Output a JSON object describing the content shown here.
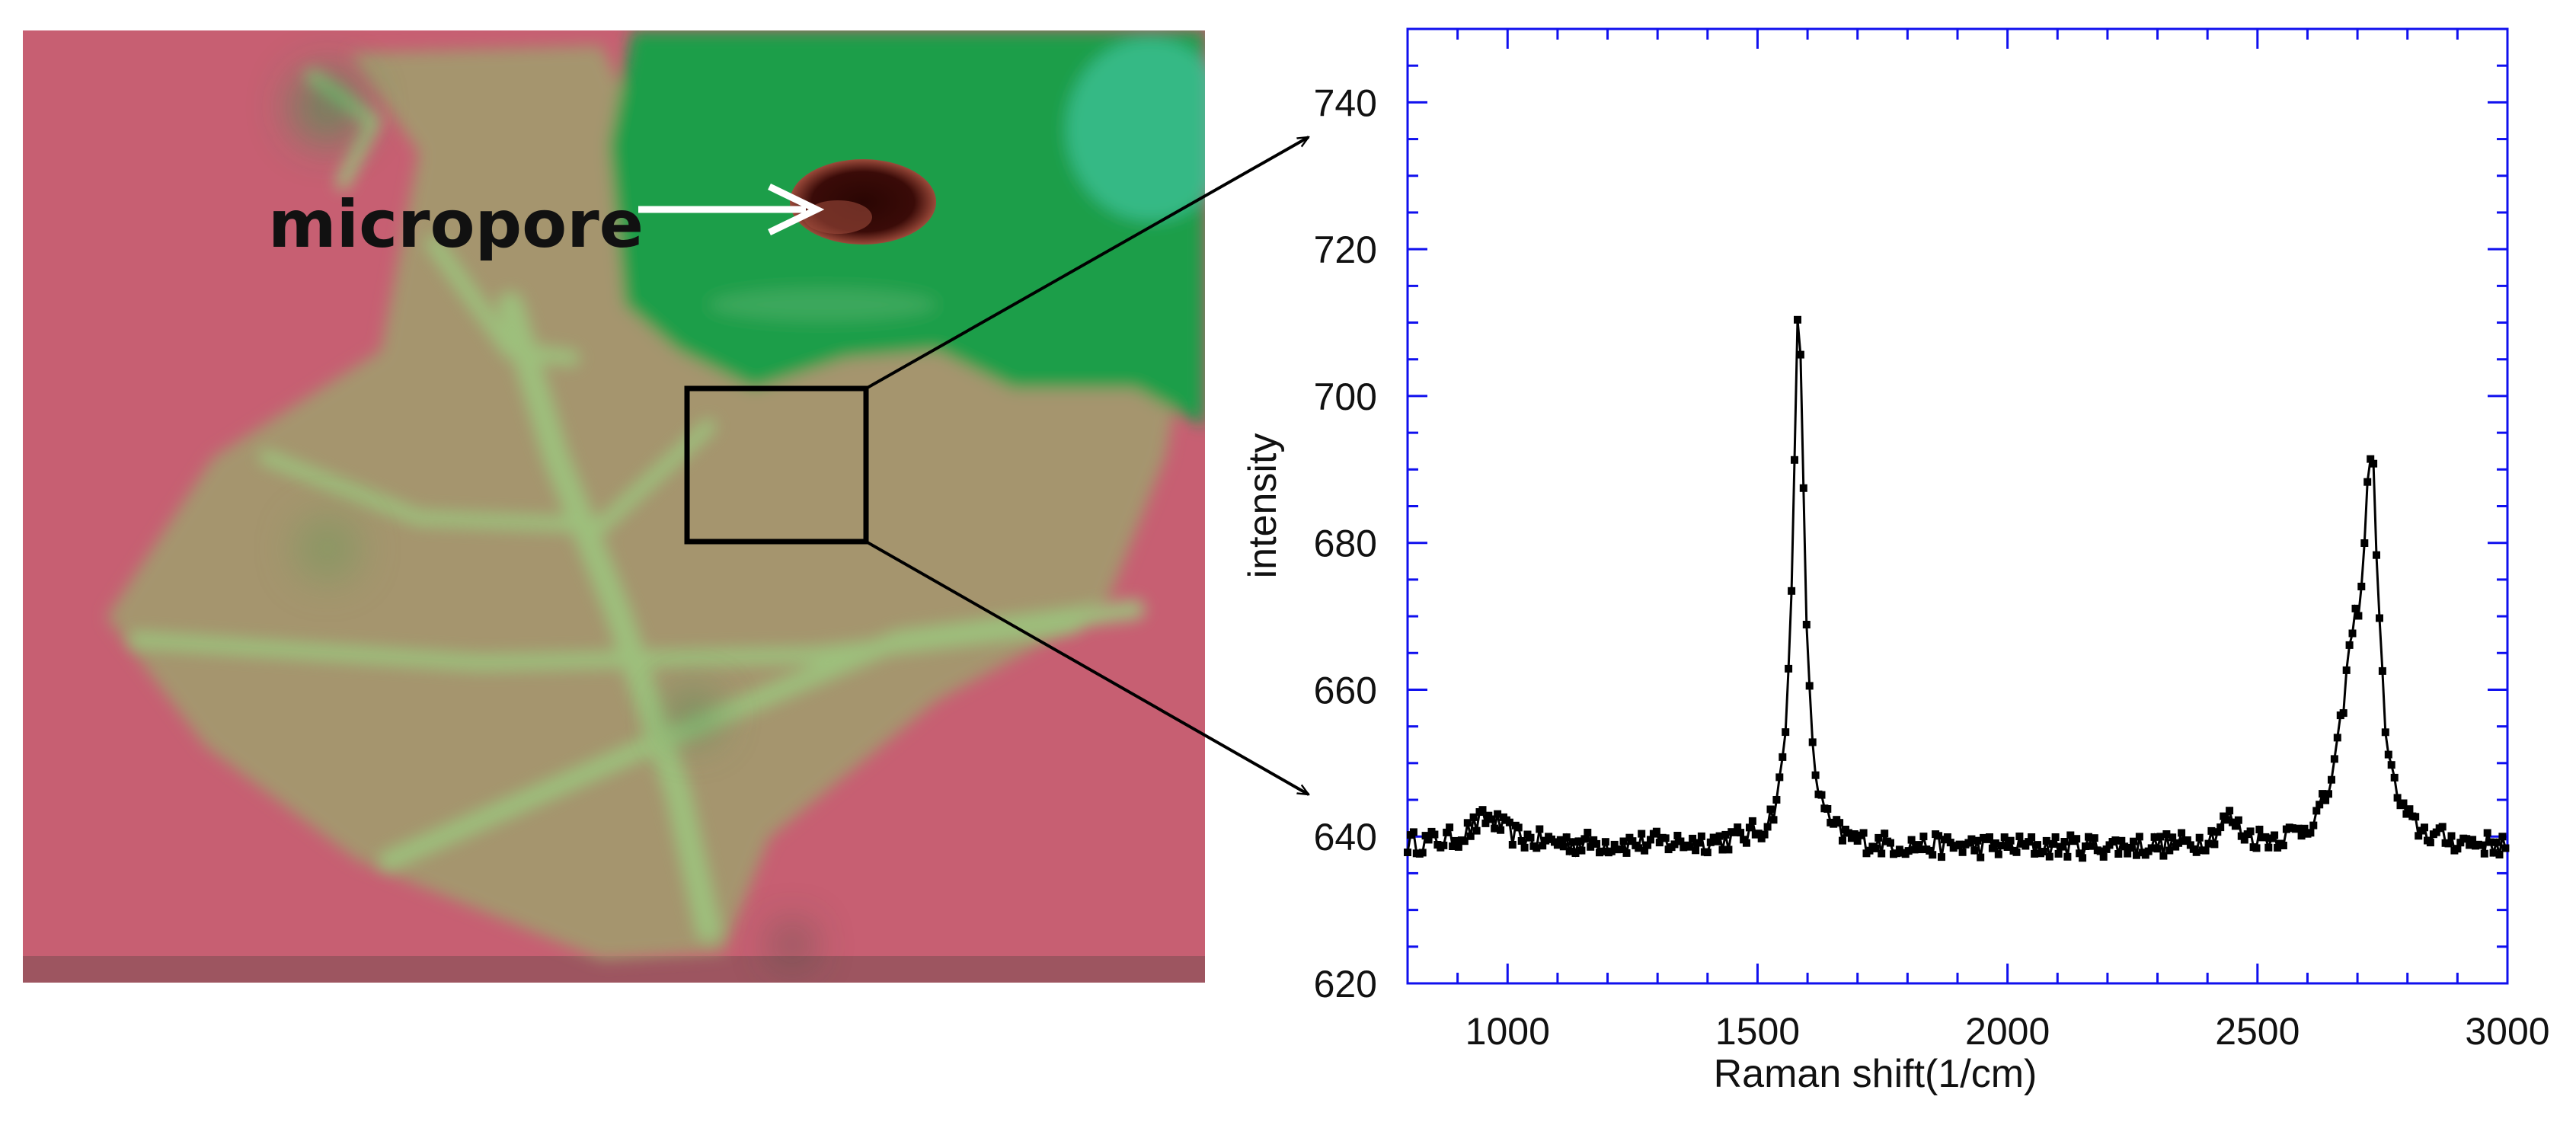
{
  "figure": {
    "annotation_label": "micropore"
  },
  "colors": {
    "background_pink": "#c75f72",
    "flake_tan": "#a5956e",
    "wrinkle_green": "#9cc47e",
    "green_region": "#1f9e48",
    "pore_dark": "#3a0b08",
    "axis_blue": "#1010ee",
    "data_black": "#000000"
  },
  "chart_data": {
    "type": "line",
    "title": "",
    "xlabel": "Raman shift(1/cm)",
    "ylabel": "intensity",
    "xlim": [
      800,
      3000
    ],
    "ylim": [
      620,
      750
    ],
    "x_ticks": [
      1000,
      1500,
      2000,
      2500,
      3000
    ],
    "y_ticks": [
      620,
      640,
      660,
      680,
      700,
      720,
      740
    ],
    "grid": false,
    "legend": "none",
    "markers": "square",
    "baseline": 638.5,
    "peaks": [
      {
        "center": 960,
        "height": 3.5,
        "width": 40
      },
      {
        "center": 1582,
        "height": 72,
        "width": 14
      },
      {
        "center": 2442,
        "height": 3.5,
        "width": 25
      },
      {
        "center": 2690,
        "height": 21,
        "width": 30
      },
      {
        "center": 2728,
        "height": 46,
        "width": 18
      }
    ],
    "x_step": 6
  }
}
